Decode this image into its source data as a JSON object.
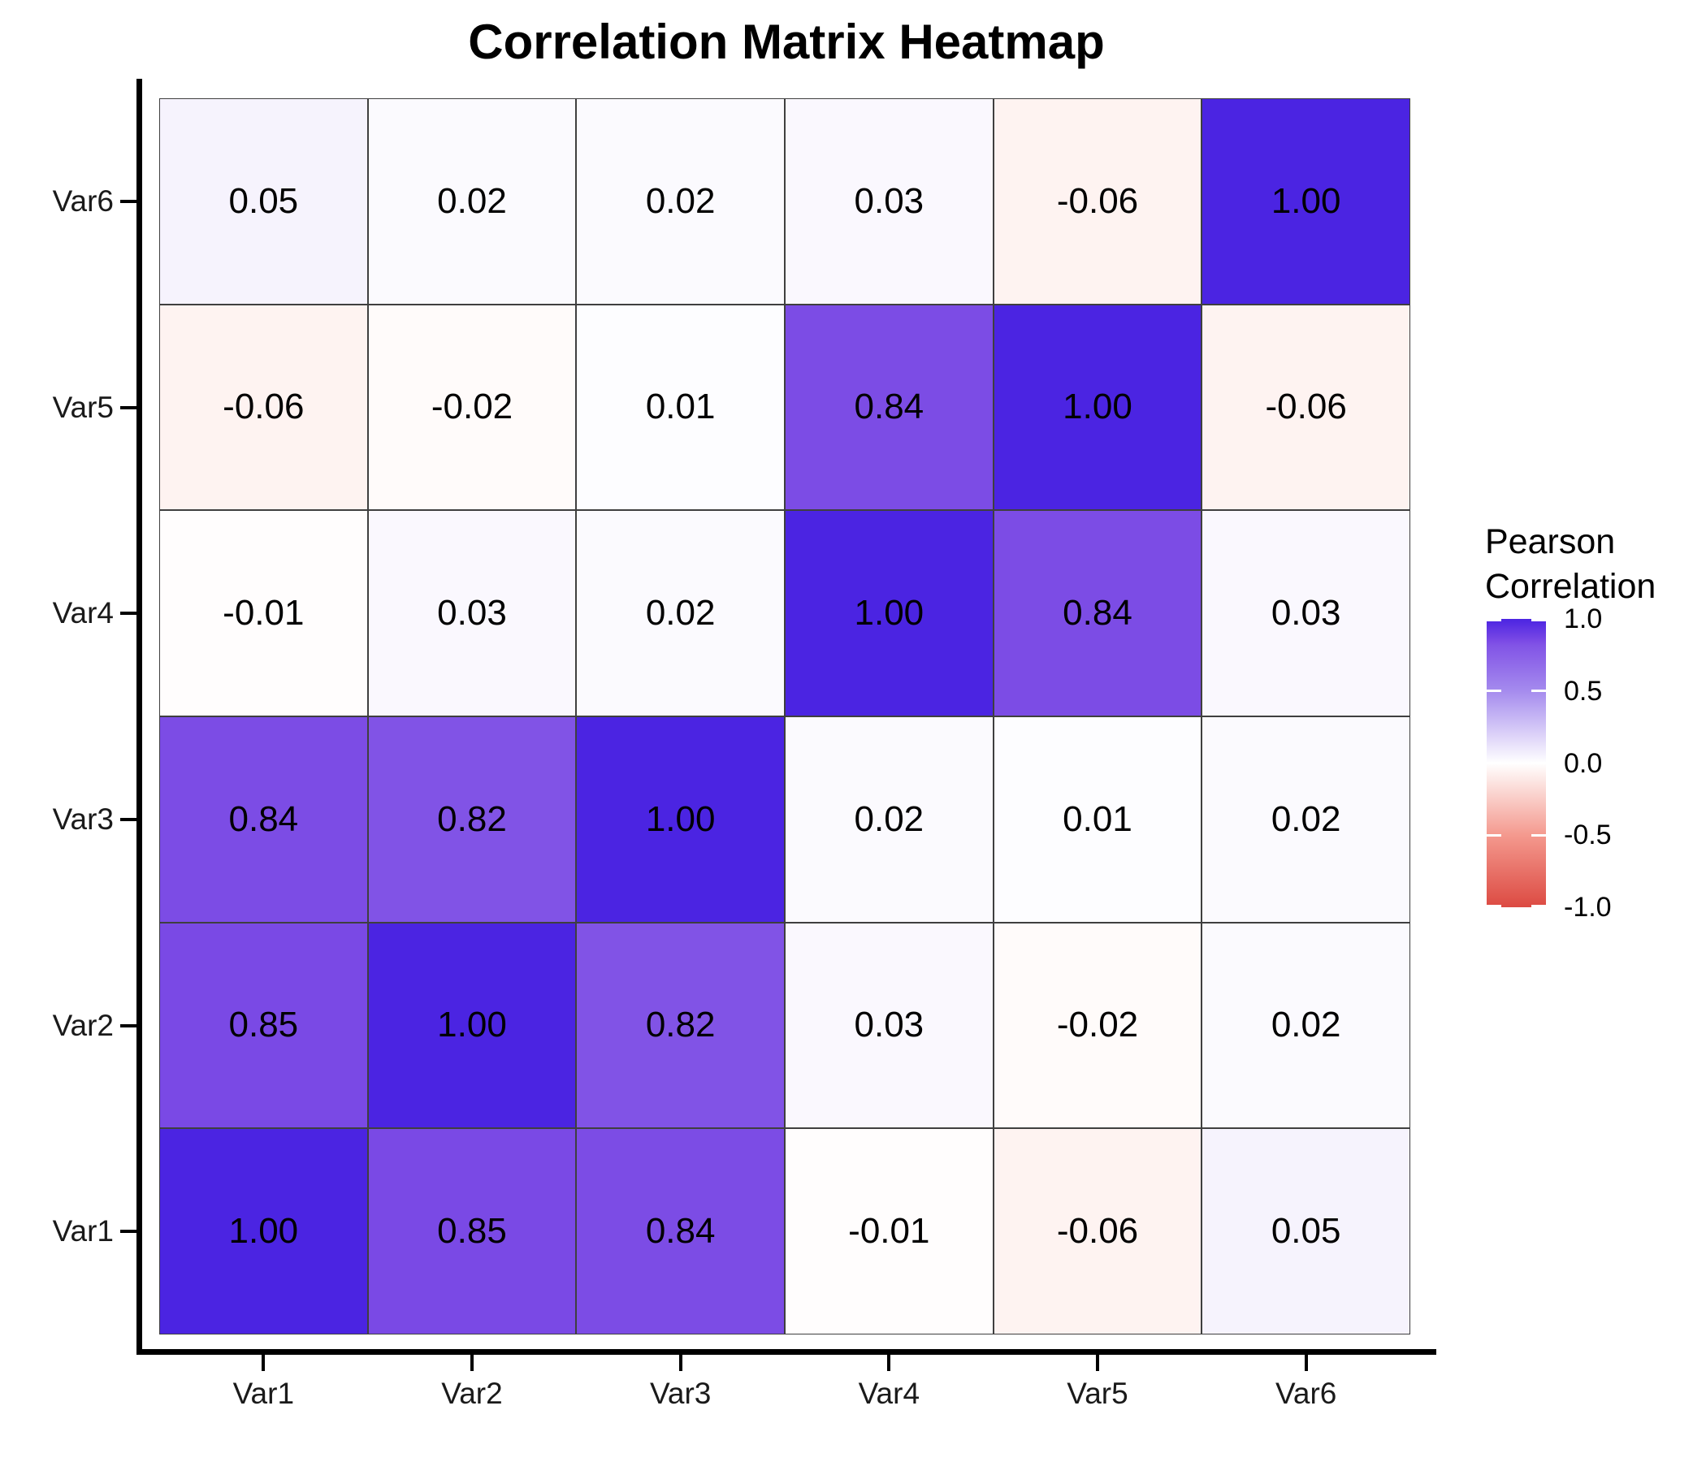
{
  "page": {
    "background": "#FFFFFF"
  },
  "chart_data": {
    "type": "heatmap",
    "title": "Correlation Matrix Heatmap",
    "xlabel": "",
    "ylabel": "",
    "x_categories": [
      "Var1",
      "Var2",
      "Var3",
      "Var4",
      "Var5",
      "Var6"
    ],
    "y_categories_top_to_bottom": [
      "Var6",
      "Var5",
      "Var4",
      "Var3",
      "Var2",
      "Var1"
    ],
    "matrix_rows_top_to_bottom": [
      {
        "row": "Var6",
        "values": [
          0.05,
          0.02,
          0.02,
          0.03,
          -0.06,
          1.0
        ]
      },
      {
        "row": "Var5",
        "values": [
          -0.06,
          -0.02,
          0.01,
          0.84,
          1.0,
          -0.06
        ]
      },
      {
        "row": "Var4",
        "values": [
          -0.01,
          0.03,
          0.02,
          1.0,
          0.84,
          0.03
        ]
      },
      {
        "row": "Var3",
        "values": [
          0.84,
          0.82,
          1.0,
          0.02,
          0.01,
          0.02
        ]
      },
      {
        "row": "Var2",
        "values": [
          0.85,
          1.0,
          0.82,
          0.03,
          -0.02,
          0.02
        ]
      },
      {
        "row": "Var1",
        "values": [
          1.0,
          0.85,
          0.84,
          -0.01,
          -0.06,
          0.05
        ]
      }
    ],
    "value_format_decimals": 2,
    "grid": false,
    "legend": {
      "position": "right",
      "title_lines": [
        "Pearson",
        "Correlation"
      ],
      "tick_labels": [
        "1.0",
        "0.5",
        "0.0",
        "-0.5",
        "-1.0"
      ],
      "tick_values": [
        1,
        0.5,
        0,
        -0.5,
        -1
      ],
      "range": [
        -1,
        1
      ]
    },
    "colors": {
      "high": "#4B24E2",
      "mid": "#FFFFFF",
      "low": "#DC4A42",
      "cell_border": "#3F3F3F",
      "axis_line": "#000000",
      "label_text": "#000000",
      "scale_anchors": [
        {
          "value": -1.0,
          "color": "#DC4A42"
        },
        {
          "value": -0.5,
          "color": "#F4998E"
        },
        {
          "value": 0.0,
          "color": "#FFFFFF"
        },
        {
          "value": 0.5,
          "color": "#A58BEE"
        },
        {
          "value": 0.82,
          "color": "#8153E6"
        },
        {
          "value": 0.85,
          "color": "#7A49E5"
        },
        {
          "value": 1.0,
          "color": "#4B24E2"
        }
      ]
    }
  }
}
